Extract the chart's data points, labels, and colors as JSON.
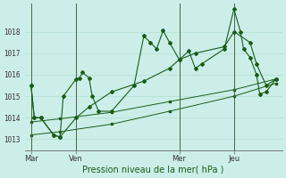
{
  "xlabel": "Pression niveau de la mer( hPa )",
  "bg_color": "#cceee8",
  "grid_color": "#aaddcc",
  "line_color": "#1a5c1a",
  "ylim": [
    1012.5,
    1019.3
  ],
  "xlim": [
    0,
    80
  ],
  "day_labels": [
    "Mar",
    "Ven",
    "Mer",
    "Jeu"
  ],
  "day_positions": [
    2,
    16,
    48,
    65
  ],
  "yticks": [
    1013,
    1014,
    1015,
    1016,
    1017,
    1018
  ],
  "series1_x": [
    2,
    3,
    5,
    9,
    11,
    12,
    16,
    17,
    18,
    20,
    21,
    23,
    27,
    34,
    37,
    39,
    41,
    43,
    45,
    48,
    51,
    53,
    55,
    62,
    65,
    67,
    68,
    70,
    72,
    73,
    75,
    78
  ],
  "series1_y": [
    1015.5,
    1014.0,
    1014.0,
    1013.2,
    1013.1,
    1015.0,
    1015.8,
    1015.85,
    1016.1,
    1015.85,
    1015.0,
    1014.3,
    1014.3,
    1015.5,
    1017.8,
    1017.5,
    1017.2,
    1018.05,
    1017.5,
    1016.7,
    1017.1,
    1016.3,
    1016.5,
    1017.2,
    1019.05,
    1018.0,
    1017.2,
    1016.8,
    1016.0,
    1015.1,
    1015.2,
    1015.8
  ],
  "series2_x": [
    2,
    3,
    5,
    9,
    11,
    16,
    20,
    27,
    37,
    45,
    48,
    53,
    62,
    65,
    70,
    72,
    75,
    78
  ],
  "series2_y": [
    1015.5,
    1014.0,
    1014.0,
    1013.2,
    1013.1,
    1014.0,
    1014.5,
    1015.2,
    1015.7,
    1016.3,
    1016.7,
    1017.0,
    1017.3,
    1018.0,
    1017.5,
    1016.5,
    1015.5,
    1015.8
  ],
  "trend1_x": [
    2,
    11,
    27,
    45,
    65,
    78
  ],
  "trend1_y": [
    1013.8,
    1013.95,
    1014.25,
    1014.75,
    1015.3,
    1015.8
  ],
  "trend2_x": [
    2,
    11,
    27,
    45,
    65,
    78
  ],
  "trend2_y": [
    1013.2,
    1013.35,
    1013.7,
    1014.3,
    1015.0,
    1015.6
  ]
}
